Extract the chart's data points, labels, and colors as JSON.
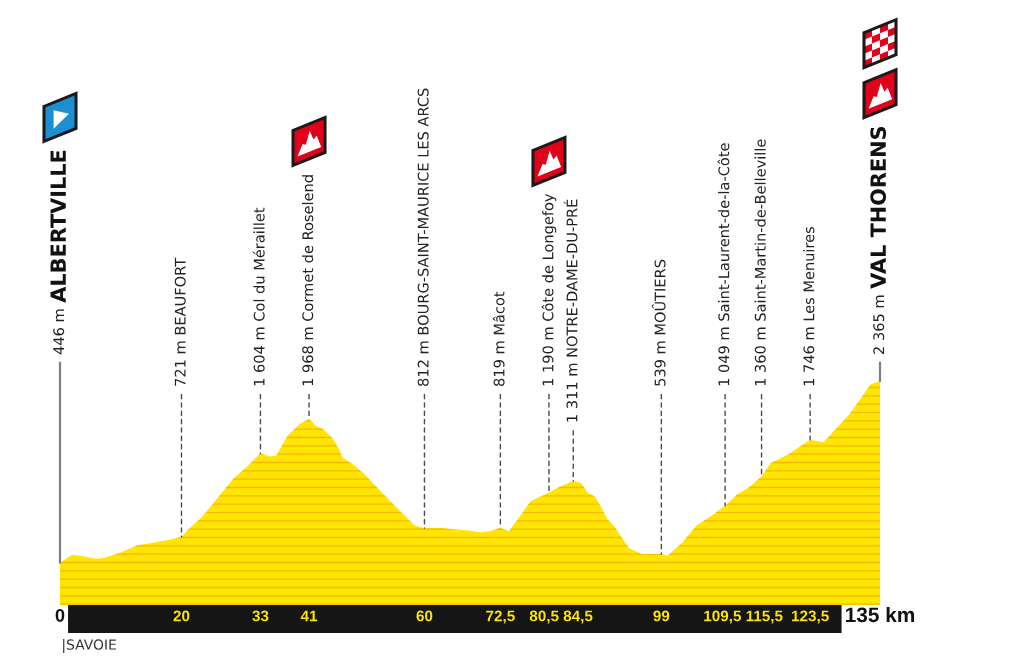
{
  "chart_data": {
    "type": "area",
    "color": "#ffe500",
    "x": [
      0,
      2,
      3.3,
      6,
      7.3,
      10,
      12.6,
      16,
      18,
      20,
      21.3,
      23.3,
      24.9,
      26.5,
      28.6,
      30.9,
      33,
      34.5,
      35.6,
      37.5,
      39.5,
      41,
      42.1,
      43.3,
      44.9,
      45.9,
      46.5,
      48.6,
      50.3,
      53,
      55.6,
      58.4,
      60,
      62.7,
      64.8,
      66.9,
      69.2,
      70.8,
      72.5,
      73.9,
      75.5,
      77.5,
      80.5,
      82.6,
      84.5,
      85.8,
      86.9,
      88,
      89,
      90.1,
      91.2,
      93.7,
      95.8,
      99,
      100,
      102.4,
      104.7,
      107.6,
      109.5,
      111.5,
      113.2,
      115.5,
      117,
      120,
      122.4,
      123.5,
      125.7,
      127.7,
      129.9,
      131.9,
      133.4,
      135
    ],
    "values": [
      446,
      530,
      520,
      490,
      500,
      555,
      630,
      665,
      690,
      721,
      810,
      925,
      1050,
      1175,
      1340,
      1470,
      1604,
      1570,
      1580,
      1790,
      1915,
      1968,
      1895,
      1860,
      1760,
      1650,
      1560,
      1470,
      1370,
      1190,
      1020,
      840,
      812,
      815,
      800,
      790,
      770,
      780,
      819,
      780,
      920,
      1100,
      1190,
      1260,
      1311,
      1290,
      1185,
      1150,
      1045,
      910,
      835,
      600,
      540,
      539,
      520,
      655,
      835,
      960,
      1049,
      1170,
      1230,
      1360,
      1500,
      1595,
      1700,
      1746,
      1720,
      1860,
      2010,
      2190,
      2330,
      2365
    ],
    "value_labels": [
      "446 m",
      null,
      null,
      null,
      null,
      null,
      null,
      null,
      null,
      "721 m BEAUFORT",
      null,
      null,
      null,
      null,
      null,
      null,
      "1 604 m Col du Méraillet",
      null,
      null,
      null,
      null,
      "1 968 m Cormet de Roselend",
      null,
      null,
      null,
      null,
      null,
      null,
      null,
      null,
      null,
      null,
      "812 m BOURG-SAINT-MAURICE LES ARCS",
      null,
      null,
      null,
      null,
      null,
      "819 m Mâcot",
      null,
      null,
      null,
      "1 190 m Côte de Longefoy",
      null,
      "1 311 m NOTRE-DAME-DU-PRÉ",
      null,
      null,
      null,
      null,
      null,
      null,
      null,
      null,
      "539 m MOÛTIERS",
      null,
      null,
      null,
      null,
      "1 049 m Saint-Laurent-de-la-Côte",
      null,
      null,
      "1 360 m Saint-Martin-de-Belleville",
      null,
      null,
      null,
      "1 746 m Les Menuires",
      null,
      null,
      null,
      null,
      null,
      "2 365 m"
    ],
    "xlim": [
      0,
      135
    ],
    "xticks": [
      0,
      20,
      33,
      41,
      60,
      {
        "value": 72.5,
        "label": "72,5"
      },
      {
        "value": 80.5,
        "label": "80,5"
      },
      {
        "value": 84.5,
        "label": "84,5"
      },
      99,
      {
        "value": 109.5,
        "label": "109,5"
      },
      {
        "value": 115.5,
        "label": "115,5"
      },
      {
        "value": 123.5,
        "label": "123,5"
      },
      {
        "value": 135,
        "label": "135 km"
      }
    ],
    "tick_labels": "x",
    "annotations": [
      "ALBERTVILLE",
      "VAL THORENS",
      "|SAVOIE"
    ]
  }
}
